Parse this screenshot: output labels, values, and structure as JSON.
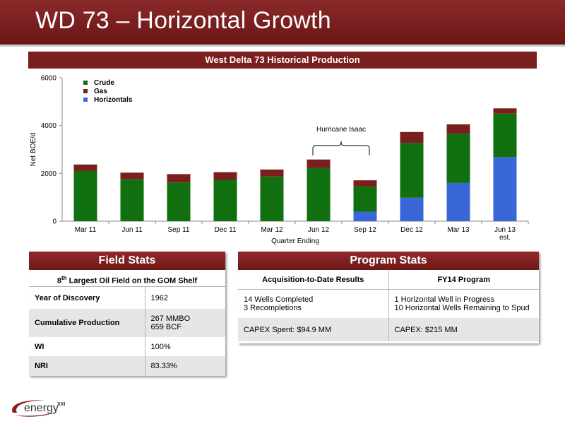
{
  "slide": {
    "title": "WD 73 – Horizontal Growth"
  },
  "chart_header": "West Delta 73 Historical Production",
  "chart_data": {
    "type": "bar",
    "stacked": true,
    "categories": [
      "Mar 11",
      "Jun 11",
      "Sep 11",
      "Dec 11",
      "Mar 12",
      "Jun 12",
      "Sep 12",
      "Dec 12",
      "Mar 13",
      "Jun 13"
    ],
    "category_sublabels": [
      "",
      "",
      "",
      "",
      "",
      "",
      "",
      "",
      "",
      "est."
    ],
    "series": [
      {
        "name": "Horizontals",
        "color": "#3a67d8",
        "values": [
          0,
          0,
          0,
          0,
          0,
          0,
          400,
          980,
          1600,
          2680
        ]
      },
      {
        "name": "Crude",
        "color": "#107010",
        "values": [
          2100,
          1750,
          1620,
          1730,
          1870,
          2220,
          1050,
          2290,
          2060,
          1820
        ]
      },
      {
        "name": "Gas",
        "color": "#7a1e1e",
        "values": [
          270,
          280,
          350,
          320,
          290,
          360,
          260,
          460,
          390,
          220
        ]
      }
    ],
    "legend": [
      "Crude",
      "Gas",
      "Horizontals"
    ],
    "xlabel": "Quarter Ending",
    "ylabel": "Net BOE/d",
    "ylim": [
      0,
      6000
    ],
    "yticks": [
      0,
      2000,
      4000,
      6000
    ],
    "grid": false,
    "legend_position": "top-left",
    "annotation": {
      "text": "Hurricane Isaac",
      "from_category": "Jun 12",
      "to_category": "Sep 12"
    }
  },
  "field_stats": {
    "title": "Field Stats",
    "subtitle_prefix": "8",
    "subtitle_sup": "th",
    "subtitle_rest": " Largest Oil Field on the GOM Shelf",
    "rows": [
      {
        "key": "Year of Discovery",
        "value": "1962"
      },
      {
        "key": "Cumulative Production",
        "value_line1": "267 MMBO",
        "value_line2": "659 BCF"
      },
      {
        "key": "WI",
        "value": "100%"
      },
      {
        "key": "NRI",
        "value": "83.33%"
      }
    ]
  },
  "program_stats": {
    "title": "Program Stats",
    "col1_header": "Acquisition-to-Date Results",
    "col2_header": "FY14 Program",
    "row1_col1_line1": "14 Wells Completed",
    "row1_col1_line2": "3 Recompletions",
    "row1_col2_line1": "1 Horizontal Well in Progress",
    "row1_col2_line2": "10 Horizontal Wells Remaining to Spud",
    "row2_col1": "CAPEX Spent: $94.9 MM",
    "row2_col2": "CAPEX: $215 MM"
  },
  "logo": {
    "text": "energy",
    "sup": "XXI"
  }
}
